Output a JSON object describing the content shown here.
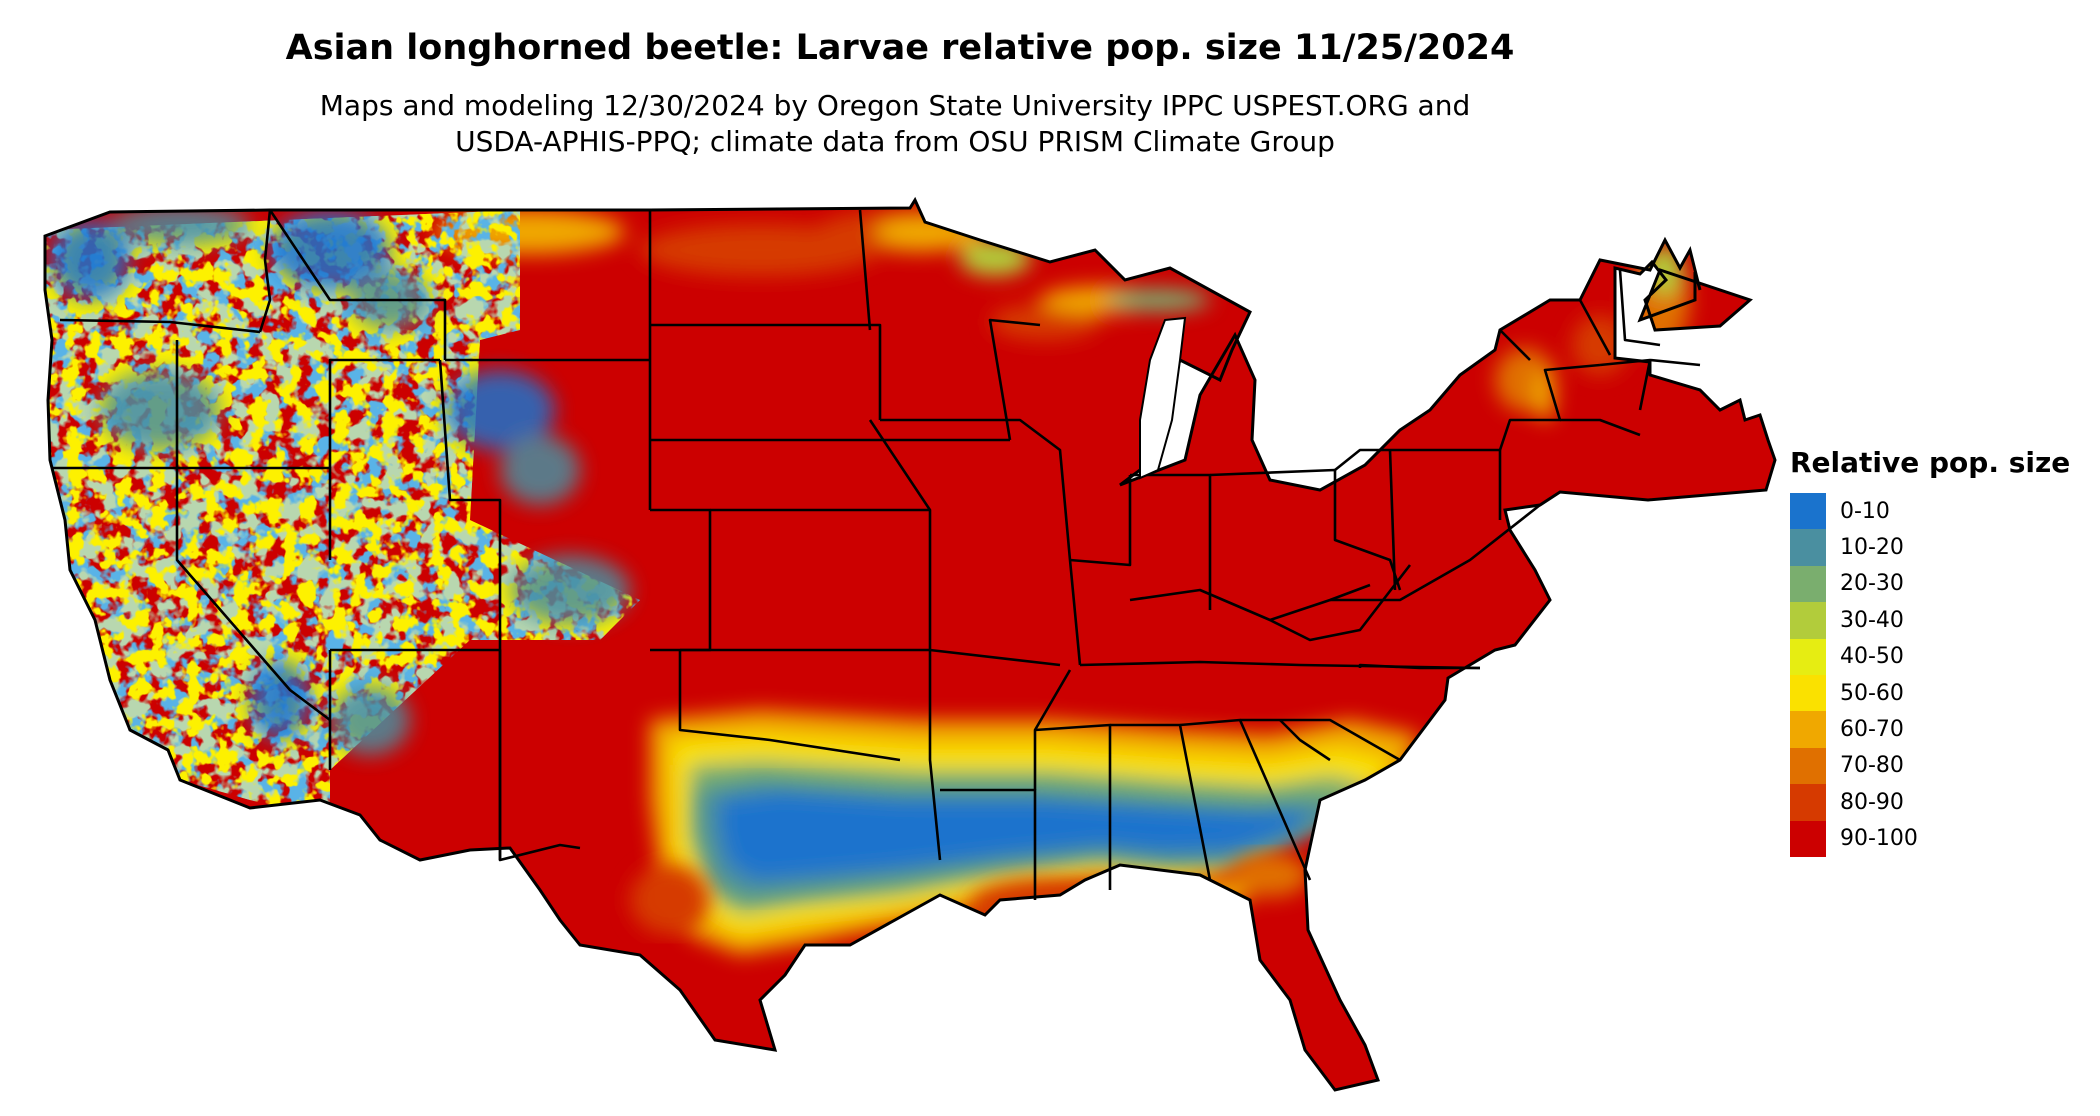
{
  "title": "Asian longhorned beetle: Larvae relative pop. size 11/25/2024",
  "subtitle_line1": "Maps and modeling 12/30/2024 by Oregon State University IPPC USPEST.ORG and",
  "subtitle_line2": "USDA-APHIS-PPQ; climate data from OSU PRISM Climate Group",
  "legend": {
    "title": "Relative pop. size",
    "items": [
      {
        "label": "0-10",
        "color": "#1a73cd"
      },
      {
        "label": "10-20",
        "color": "#4a8fa0"
      },
      {
        "label": "20-30",
        "color": "#7aae6e"
      },
      {
        "label": "30-40",
        "color": "#b2cc3b"
      },
      {
        "label": "40-50",
        "color": "#e6ed12"
      },
      {
        "label": "50-60",
        "color": "#fae100"
      },
      {
        "label": "60-70",
        "color": "#f0a800"
      },
      {
        "label": "70-80",
        "color": "#e07000"
      },
      {
        "label": "80-90",
        "color": "#d63a00"
      },
      {
        "label": "90-100",
        "color": "#cc0000"
      }
    ]
  }
}
